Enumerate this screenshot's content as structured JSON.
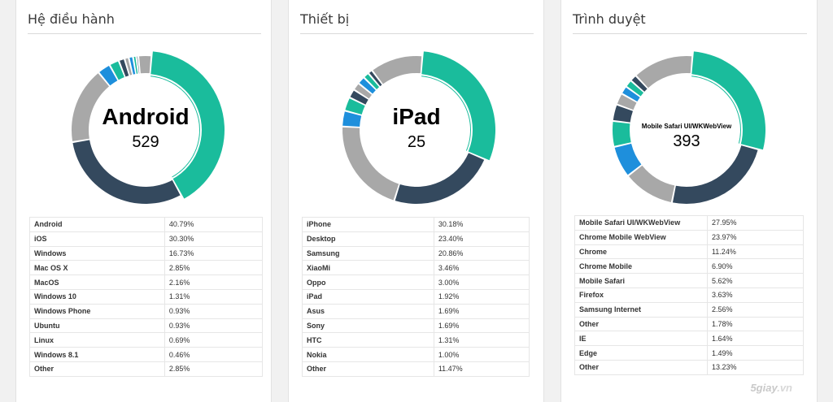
{
  "panels": [
    {
      "title": "Hệ điều hành",
      "center_label": "Android",
      "center_value": "529",
      "rows": [
        {
          "name": "Android",
          "pct": "40.79%"
        },
        {
          "name": "iOS",
          "pct": "30.30%"
        },
        {
          "name": "Windows",
          "pct": "16.73%"
        },
        {
          "name": "Mac OS X",
          "pct": "2.85%"
        },
        {
          "name": "MacOS",
          "pct": "2.16%"
        },
        {
          "name": "Windows 10",
          "pct": "1.31%"
        },
        {
          "name": "Windows Phone",
          "pct": "0.93%"
        },
        {
          "name": "Ubuntu",
          "pct": "0.93%"
        },
        {
          "name": "Linux",
          "pct": "0.69%"
        },
        {
          "name": "Windows 8.1",
          "pct": "0.46%"
        },
        {
          "name": "Other",
          "pct": "2.85%"
        }
      ]
    },
    {
      "title": "Thiết bị",
      "center_label": "iPad",
      "center_value": "25",
      "rows": [
        {
          "name": "iPhone",
          "pct": "30.18%"
        },
        {
          "name": "Desktop",
          "pct": "23.40%"
        },
        {
          "name": "Samsung",
          "pct": "20.86%"
        },
        {
          "name": "XiaoMi",
          "pct": "3.46%"
        },
        {
          "name": "Oppo",
          "pct": "3.00%"
        },
        {
          "name": "iPad",
          "pct": "1.92%"
        },
        {
          "name": "Asus",
          "pct": "1.69%"
        },
        {
          "name": "Sony",
          "pct": "1.69%"
        },
        {
          "name": "HTC",
          "pct": "1.31%"
        },
        {
          "name": "Nokia",
          "pct": "1.00%"
        },
        {
          "name": "Other",
          "pct": "11.47%"
        }
      ]
    },
    {
      "title": "Trình duyệt",
      "center_label": "Mobile Safari UI/WKWebView",
      "center_value": "393",
      "rows": [
        {
          "name": "Mobile Safari UI/WKWebView",
          "pct": "27.95%"
        },
        {
          "name": "Chrome Mobile WebView",
          "pct": "23.97%"
        },
        {
          "name": "Chrome",
          "pct": "11.24%"
        },
        {
          "name": "Chrome Mobile",
          "pct": "6.90%"
        },
        {
          "name": "Mobile Safari",
          "pct": "5.62%"
        },
        {
          "name": "Firefox",
          "pct": "3.63%"
        },
        {
          "name": "Samsung Internet",
          "pct": "2.56%"
        },
        {
          "name": "Other",
          "pct": "1.78%"
        },
        {
          "name": "IE",
          "pct": "1.64%"
        },
        {
          "name": "Edge",
          "pct": "1.49%"
        },
        {
          "name": "Other",
          "pct": "13.23%"
        }
      ]
    }
  ],
  "colors": {
    "dark": "#34495e",
    "teal": "#1abc9c",
    "gray": "#a8a8a8",
    "blue": "#1e8fdc"
  },
  "watermark": {
    "brand": "5giay",
    "domain": ".vn"
  }
}
